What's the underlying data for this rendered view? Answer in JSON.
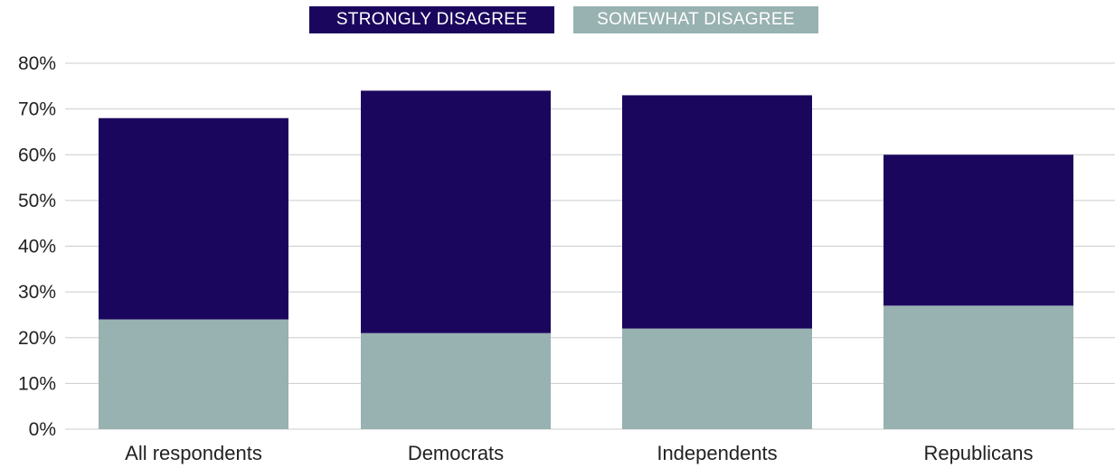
{
  "chart_data": {
    "type": "bar",
    "stacked": true,
    "categories": [
      "All respondents",
      "Democrats",
      "Independents",
      "Republicans"
    ],
    "series": [
      {
        "name": "SOMEWHAT DISAGREE",
        "color": "#98b1b1",
        "values": [
          24,
          21,
          22,
          27
        ]
      },
      {
        "name": "STRONGLY DISAGREE",
        "color": "#1b065e",
        "values": [
          44,
          53,
          51,
          33
        ]
      }
    ],
    "yticks": [
      "0%",
      "10%",
      "20%",
      "30%",
      "40%",
      "50%",
      "60%",
      "70%",
      "80%"
    ],
    "ylim": [
      0,
      80
    ],
    "grid": true,
    "legend_position": "top-center"
  }
}
